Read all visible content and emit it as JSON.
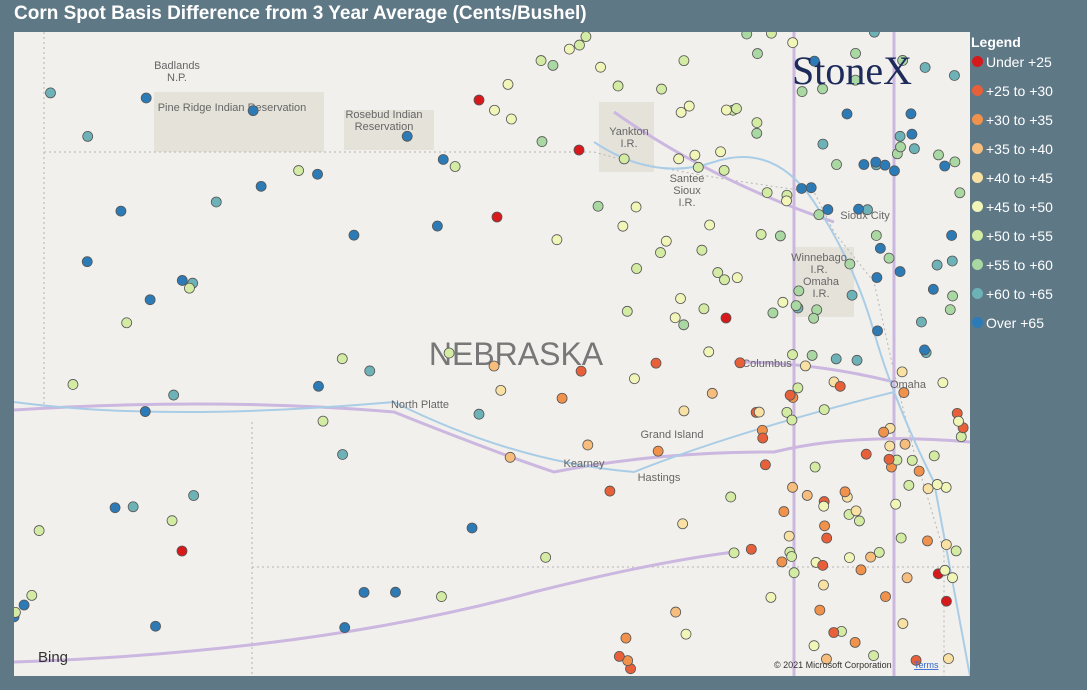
{
  "header": {
    "title": "Corn Spot Basis Difference from 3 Year Average (Cents/Bushel)"
  },
  "legend": {
    "title": "Legend",
    "items": [
      {
        "label": "Under +25",
        "color": "#d7191c"
      },
      {
        "label": "+25 to +30",
        "color": "#e8603a"
      },
      {
        "label": "+30 to +35",
        "color": "#f0924c"
      },
      {
        "label": "+35 to +40",
        "color": "#f6bd7c"
      },
      {
        "label": "+40 to +45",
        "color": "#f9e1a3"
      },
      {
        "label": "+45 to +50",
        "color": "#f1f6b8"
      },
      {
        "label": "+50 to +55",
        "color": "#d3eba2"
      },
      {
        "label": "+55 to +60",
        "color": "#a9d8a2"
      },
      {
        "label": "+60 to +65",
        "color": "#6db2b7"
      },
      {
        "label": "Over +65",
        "color": "#2c7bb6"
      }
    ]
  },
  "map": {
    "labels": [
      "Badlands",
      "N.P.",
      "Pine Ridge Indian Reservation",
      "Rosebud Indian",
      "Reservation",
      "Yankton",
      "I.R.",
      "Santee",
      "Sioux",
      "I.R.",
      "Sioux City",
      "Winnebago",
      "I.R.",
      "Omaha",
      "I.R.",
      "NEBRASKA",
      "Columbus",
      "Omaha",
      "North Platte",
      "Grand Island",
      "Kearney",
      "Hastings"
    ],
    "logo": "StoneX",
    "provider": "Bing",
    "copyright": "© 2021 Microsoft Corporation",
    "terms": "Terms"
  }
}
